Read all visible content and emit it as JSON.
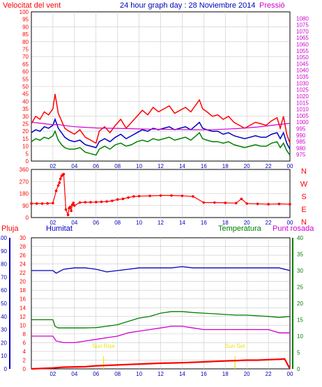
{
  "header": {
    "wind_label": "Velocitat del vent",
    "title": "24 hour graph day : 28 Noviembre 2014",
    "pressure_label": "Pressió"
  },
  "colors": {
    "frame": "#000000",
    "grid": "#c8c8c8",
    "red": "#ff0000",
    "blue": "#0000c0",
    "green": "#008000",
    "magenta": "#d000d0",
    "yellow": "#e8e800",
    "dark_red": "#cc0000"
  },
  "x_ticks": [
    "02",
    "04",
    "06",
    "08",
    "10",
    "12",
    "14",
    "16",
    "18",
    "20",
    "22",
    "00"
  ],
  "chart_data": [
    {
      "type": "line",
      "name": "wind_pressure",
      "x_range": [
        0,
        24
      ],
      "left_axis": {
        "label": "Velocitat del vent",
        "ylim": [
          0,
          100
        ],
        "ticks": [
          0,
          5,
          10,
          15,
          20,
          25,
          30,
          35,
          40,
          45,
          50,
          55,
          60,
          65,
          70,
          75,
          80,
          85,
          90,
          95,
          100
        ]
      },
      "right_axis": {
        "label": "Pressió",
        "ylim": [
          970,
          1085
        ],
        "ticks": [
          975,
          980,
          985,
          990,
          995,
          1000,
          1005,
          1010,
          1015,
          1020,
          1025,
          1030,
          1035,
          1040,
          1045,
          1050,
          1055,
          1060,
          1065,
          1070,
          1075,
          1080
        ]
      },
      "series": [
        {
          "color": "red",
          "axis": "left",
          "x": [
            0.0,
            0.4,
            0.8,
            1.2,
            1.6,
            2.0,
            2.2,
            2.5,
            2.8,
            3.1,
            3.5,
            4.0,
            4.5,
            5.0,
            5.5,
            6.0,
            6.3,
            6.8,
            7.3,
            7.8,
            8.3,
            8.8,
            9.3,
            9.8,
            10.3,
            10.8,
            11.3,
            11.8,
            12.3,
            12.8,
            13.3,
            13.8,
            14.3,
            14.8,
            15.3,
            15.6,
            15.9,
            16.3,
            16.8,
            17.3,
            17.8,
            18.3,
            18.8,
            19.3,
            19.8,
            20.3,
            20.8,
            21.3,
            21.8,
            22.3,
            22.8,
            23.1,
            23.4,
            23.7,
            24.0
          ],
          "values": [
            25,
            30,
            28,
            33,
            31,
            35,
            45,
            32,
            27,
            22,
            20,
            18,
            21,
            16,
            14,
            12,
            20,
            23,
            19,
            24,
            28,
            22,
            26,
            30,
            34,
            31,
            36,
            33,
            35,
            37,
            32,
            34,
            36,
            33,
            38,
            41,
            35,
            33,
            30,
            31,
            28,
            30,
            26,
            24,
            22,
            24,
            26,
            25,
            24,
            27,
            29,
            22,
            30,
            18,
            12
          ]
        },
        {
          "color": "blue",
          "axis": "left",
          "x": [
            0.0,
            0.4,
            0.8,
            1.2,
            1.6,
            2.0,
            2.2,
            2.5,
            2.8,
            3.1,
            3.5,
            4.0,
            4.5,
            5.0,
            5.5,
            6.0,
            6.3,
            6.8,
            7.3,
            7.8,
            8.3,
            8.8,
            9.3,
            9.8,
            10.3,
            10.8,
            11.3,
            11.8,
            12.3,
            12.8,
            13.3,
            13.8,
            14.3,
            14.8,
            15.3,
            15.6,
            15.9,
            16.3,
            16.8,
            17.3,
            17.8,
            18.3,
            18.8,
            19.3,
            19.8,
            20.3,
            20.8,
            21.3,
            21.8,
            22.3,
            22.8,
            23.1,
            23.4,
            23.7,
            24.0
          ],
          "values": [
            19,
            21,
            20,
            23,
            22,
            24,
            28,
            22,
            19,
            16,
            14,
            13,
            14,
            11,
            10,
            9,
            13,
            15,
            13,
            16,
            18,
            15,
            17,
            19,
            21,
            20,
            22,
            21,
            22,
            23,
            21,
            22,
            23,
            21,
            24,
            26,
            22,
            21,
            20,
            20,
            18,
            19,
            17,
            16,
            15,
            16,
            17,
            16,
            16,
            18,
            19,
            15,
            19,
            12,
            8
          ]
        },
        {
          "color": "green",
          "axis": "left",
          "x": [
            0.0,
            0.4,
            0.8,
            1.2,
            1.6,
            2.0,
            2.2,
            2.5,
            2.8,
            3.1,
            3.5,
            4.0,
            4.5,
            5.0,
            5.5,
            6.0,
            6.3,
            6.8,
            7.3,
            7.8,
            8.3,
            8.8,
            9.3,
            9.8,
            10.3,
            10.8,
            11.3,
            11.8,
            12.3,
            12.8,
            13.3,
            13.8,
            14.3,
            14.8,
            15.3,
            15.6,
            15.9,
            16.3,
            16.8,
            17.3,
            17.8,
            18.3,
            18.8,
            19.3,
            19.8,
            20.3,
            20.8,
            21.3,
            21.8,
            22.3,
            22.8,
            23.1,
            23.4,
            23.7,
            24.0
          ],
          "values": [
            13,
            15,
            14,
            16,
            15,
            17,
            20,
            14,
            11,
            9,
            8,
            8,
            9,
            6,
            5,
            4,
            8,
            10,
            8,
            11,
            12,
            10,
            11,
            13,
            14,
            13,
            15,
            14,
            15,
            16,
            14,
            15,
            16,
            14,
            17,
            19,
            15,
            14,
            13,
            13,
            12,
            13,
            11,
            10,
            9,
            10,
            11,
            10,
            10,
            12,
            13,
            9,
            12,
            7,
            4
          ]
        },
        {
          "color": "magenta",
          "axis": "right",
          "x": [
            0.0,
            0.5,
            1.0,
            1.5,
            2.0,
            2.5,
            3.0,
            3.5,
            4.0,
            5.0,
            6.0,
            7.0,
            8.0,
            9.0,
            10.0,
            11.0,
            12.0,
            13.0,
            14.0,
            15.0,
            16.0,
            17.0,
            18.0,
            19.0,
            20.0,
            21.0,
            22.0,
            23.0,
            24.0
          ],
          "values": [
            1000,
            999.5,
            999,
            998.5,
            998,
            998.2,
            997.5,
            997,
            996.5,
            996,
            995.5,
            995.3,
            995.2,
            995,
            994.8,
            994.6,
            994.5,
            994.4,
            994.3,
            994.2,
            994.1,
            994.3,
            994.6,
            995,
            995.6,
            996.3,
            997.2,
            998.2,
            999
          ]
        }
      ]
    },
    {
      "type": "scatter",
      "name": "wind_direction",
      "x_range": [
        0,
        24
      ],
      "left_axis": {
        "ylim": [
          0,
          360
        ],
        "ticks": [
          0,
          90,
          180,
          270,
          360
        ]
      },
      "right_axis": {
        "labels": [
          "N",
          "W",
          "S",
          "E",
          "N"
        ]
      },
      "series": [
        {
          "color": "red",
          "x": [
            0.0,
            0.5,
            1.0,
            1.5,
            2.0,
            2.3,
            2.5,
            2.6,
            2.7,
            2.8,
            2.9,
            3.0,
            3.2,
            3.4,
            3.5,
            3.6,
            3.7,
            3.8,
            3.9,
            4.0,
            4.5,
            5.0,
            5.5,
            6.0,
            6.5,
            7.0,
            7.5,
            8.0,
            8.5,
            9.0,
            9.5,
            10.0,
            11.0,
            12.0,
            13.0,
            14.0,
            15.0,
            16.0,
            17.0,
            18.0,
            19.0,
            19.5,
            20.0,
            21.0,
            22.0,
            23.0,
            24.0
          ],
          "values": [
            105,
            105,
            105,
            106,
            108,
            200,
            240,
            260,
            290,
            310,
            320,
            325,
            60,
            20,
            70,
            80,
            50,
            95,
            110,
            90,
            112,
            115,
            115,
            116,
            118,
            120,
            125,
            135,
            140,
            150,
            158,
            160,
            162,
            165,
            165,
            163,
            158,
            112,
            112,
            110,
            108,
            140,
            105,
            103,
            100,
            102,
            100
          ]
        }
      ]
    },
    {
      "type": "line",
      "name": "rain_humidity_temperature_dewpoint",
      "x_range": [
        0,
        24
      ],
      "axes": {
        "pluja": {
          "ticks": [
            0,
            2,
            4,
            6,
            8,
            10,
            12,
            14,
            16,
            18,
            20,
            22,
            24,
            26,
            28,
            30
          ]
        },
        "humitat": {
          "ticks": [
            0,
            10,
            20,
            30,
            40,
            50,
            60,
            70,
            80,
            90,
            100
          ]
        },
        "temperatura": {
          "ticks": [
            0,
            5,
            10,
            15,
            20,
            25,
            30,
            35,
            40
          ]
        },
        "punt_rosada": {
          "ticks": [
            0,
            5,
            10,
            15,
            20,
            25,
            30,
            35,
            40
          ]
        }
      },
      "labels": {
        "pluja": "Pluja",
        "humitat": "Humitat",
        "temperatura": "Temperatura",
        "punt_rosada": "Punt rosada",
        "sunrise": "Sun Rise",
        "sunset": "Sun Set"
      },
      "sunrise_hour": 6.7,
      "sunset_hour": 18.9,
      "series": [
        {
          "color": "blue",
          "axis": "humitat",
          "x": [
            0,
            1,
            2,
            2.3,
            3,
            4,
            5,
            6,
            7,
            8,
            9,
            10,
            11,
            12,
            13,
            14,
            15,
            16,
            17,
            18,
            19,
            20,
            21,
            22,
            23,
            24
          ],
          "values": [
            75,
            75,
            75,
            73,
            76,
            77,
            77,
            76,
            74,
            75,
            76,
            77,
            77,
            77,
            77,
            78,
            77,
            77,
            77,
            77,
            77,
            77,
            77,
            77,
            77,
            75
          ]
        },
        {
          "color": "green",
          "axis": "temperatura",
          "x": [
            0,
            1,
            2,
            2.2,
            2.5,
            3,
            4,
            5,
            6,
            7,
            8,
            9,
            10,
            11,
            12,
            13,
            14,
            15,
            16,
            17,
            18,
            19,
            20,
            21,
            22,
            23,
            24
          ],
          "values": [
            15,
            15,
            15,
            13,
            12.5,
            12.5,
            12.5,
            12.5,
            12.6,
            13,
            13.5,
            14.5,
            15.5,
            16,
            17,
            17.5,
            17.5,
            17.2,
            17,
            16.8,
            16.6,
            16.4,
            16.4,
            16.2,
            16,
            15.7,
            16
          ]
        },
        {
          "color": "magenta",
          "axis": "punt_rosada",
          "x": [
            0,
            1,
            2,
            2.3,
            3,
            4,
            5,
            6,
            7,
            8,
            9,
            10,
            11,
            12,
            13,
            14,
            15,
            16,
            17,
            18,
            19,
            20,
            21,
            22,
            23,
            24
          ],
          "values": [
            10,
            10,
            10,
            8.5,
            8,
            8,
            8.5,
            9,
            9.5,
            10,
            11,
            11.5,
            12,
            12.5,
            13,
            13,
            12.5,
            12,
            12,
            12,
            12,
            12,
            12,
            12,
            11,
            11
          ]
        },
        {
          "color": "red",
          "axis": "pluja",
          "x": [
            0,
            2,
            3,
            5,
            6,
            7,
            8,
            9,
            10,
            12,
            14,
            16,
            17,
            18,
            19,
            20,
            21,
            22,
            23,
            23.5,
            24
          ],
          "values": [
            0,
            0.2,
            0.4,
            0.5,
            0.7,
            0.8,
            0.9,
            1.0,
            1.1,
            1.3,
            1.4,
            1.6,
            1.7,
            1.8,
            1.9,
            2.0,
            2.0,
            2.1,
            2.2,
            2.3,
            0
          ]
        }
      ]
    }
  ]
}
